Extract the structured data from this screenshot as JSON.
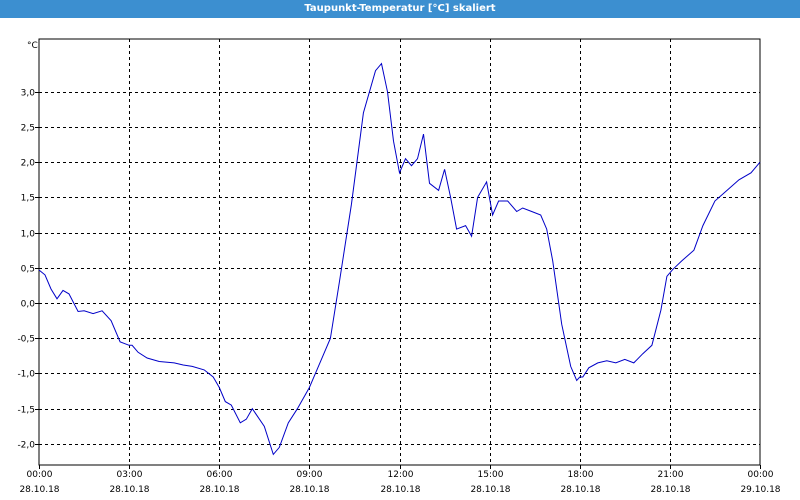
{
  "window": {
    "title": "Taupunkt-Temperatur [°C] skaliert"
  },
  "chart_data": {
    "type": "line",
    "title": "Taupunkt-Temperatur [°C] skaliert",
    "ylabel": "°C",
    "xlabel": "",
    "ylim": [
      -2.3,
      3.75
    ],
    "xlim": [
      0,
      24
    ],
    "grid": true,
    "line_color": "#0000c8",
    "grid_color": "#000000",
    "y_ticks": [
      {
        "value": 3.0,
        "label": "3,0"
      },
      {
        "value": 2.5,
        "label": "2,5"
      },
      {
        "value": 2.0,
        "label": "2,0"
      },
      {
        "value": 1.5,
        "label": "1,5"
      },
      {
        "value": 1.0,
        "label": "1,0"
      },
      {
        "value": 0.5,
        "label": "0,5"
      },
      {
        "value": 0.0,
        "label": "0,0"
      },
      {
        "value": -0.5,
        "label": "-0,5"
      },
      {
        "value": -1.0,
        "label": "-1,0"
      },
      {
        "value": -1.5,
        "label": "-1,5"
      },
      {
        "value": -2.0,
        "label": "-2,0"
      }
    ],
    "x_ticks": [
      {
        "value": 0,
        "time": "00:00",
        "date": "28.10.18"
      },
      {
        "value": 3,
        "time": "03:00",
        "date": "28.10.18"
      },
      {
        "value": 6,
        "time": "06:00",
        "date": "28.10.18"
      },
      {
        "value": 9,
        "time": "09:00",
        "date": "28.10.18"
      },
      {
        "value": 12,
        "time": "12:00",
        "date": "28.10.18"
      },
      {
        "value": 15,
        "time": "15:00",
        "date": "28.10.18"
      },
      {
        "value": 18,
        "time": "18:00",
        "date": "28.10.18"
      },
      {
        "value": 21,
        "time": "21:00",
        "date": "28.10.18"
      },
      {
        "value": 24,
        "time": "00:00",
        "date": "29.10.18"
      }
    ],
    "series": [
      {
        "x": [
          0,
          0.2,
          0.4,
          0.6,
          0.8,
          1.0,
          1.3,
          1.5,
          1.8,
          2.1,
          2.4,
          2.7,
          3.0,
          3.1,
          3.3,
          3.6,
          4.0,
          4.5,
          4.8,
          5.1,
          5.5,
          5.8,
          6.0,
          6.2,
          6.4,
          6.7,
          6.9,
          7.1,
          7.5,
          7.8,
          8.0,
          8.3,
          8.6,
          9.0,
          9.3,
          9.7,
          10.0,
          10.4,
          10.8,
          11.2,
          11.4,
          11.5,
          11.6,
          11.8,
          12.0,
          12.2,
          12.4,
          12.6,
          12.8,
          13.0,
          13.3,
          13.5,
          13.7,
          13.9,
          14.2,
          14.4,
          14.6,
          14.9,
          15.1,
          15.3,
          15.6,
          15.9,
          16.1,
          16.4,
          16.7,
          16.9,
          17.1,
          17.4,
          17.7,
          17.9,
          18.0,
          18.1,
          18.3,
          18.6,
          18.9,
          19.2,
          19.5,
          19.8,
          20.1,
          20.4,
          20.7,
          20.9,
          21.1,
          21.4,
          21.8,
          22.1,
          22.5,
          22.9,
          23.3,
          23.7,
          24.0
        ],
        "y": [
          0.47,
          0.4,
          0.2,
          0.06,
          0.18,
          0.13,
          -0.12,
          -0.11,
          -0.15,
          -0.11,
          -0.25,
          -0.55,
          -0.6,
          -0.6,
          -0.7,
          -0.78,
          -0.83,
          -0.85,
          -0.88,
          -0.9,
          -0.95,
          -1.05,
          -1.2,
          -1.4,
          -1.45,
          -1.7,
          -1.65,
          -1.5,
          -1.75,
          -2.15,
          -2.05,
          -1.7,
          -1.5,
          -1.2,
          -0.9,
          -0.5,
          0.3,
          1.4,
          2.7,
          3.3,
          3.4,
          3.2,
          3.0,
          2.3,
          1.85,
          2.05,
          1.95,
          2.05,
          2.4,
          1.7,
          1.6,
          1.9,
          1.5,
          1.05,
          1.1,
          0.95,
          1.5,
          1.72,
          1.25,
          1.45,
          1.45,
          1.3,
          1.35,
          1.3,
          1.25,
          1.05,
          0.6,
          -0.3,
          -0.9,
          -1.1,
          -1.05,
          -1.05,
          -0.92,
          -0.85,
          -0.82,
          -0.85,
          -0.8,
          -0.85,
          -0.72,
          -0.6,
          -0.1,
          0.38,
          0.48,
          0.6,
          0.75,
          1.1,
          1.45,
          1.6,
          1.75,
          1.85,
          2.0
        ]
      }
    ]
  }
}
